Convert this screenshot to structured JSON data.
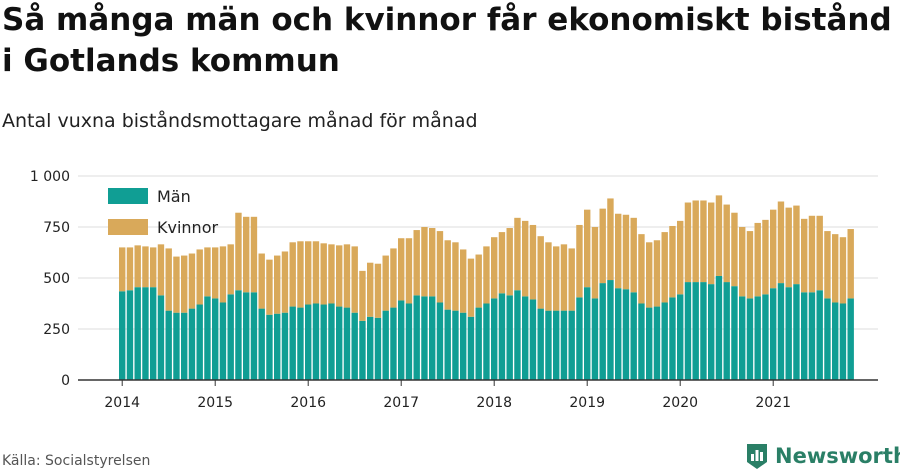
{
  "header": {
    "title": "Så många män och kvinnor får ekonomiskt bistånd i Gotlands kommun",
    "subtitle": "Antal vuxna biståndsmottagare månad för månad"
  },
  "footer": {
    "source": "Källa: Socialstyrelsen",
    "brand": "Newsworthy"
  },
  "colors": {
    "men": "#109e94",
    "women": "#d9a95a",
    "grid": "#dddddd",
    "axis": "#333333",
    "brand": "#2a7f66"
  },
  "chart_data": {
    "type": "bar",
    "stacked": true,
    "x_tick_labels": [
      "2014",
      "2015",
      "2016",
      "2017",
      "2018",
      "2019",
      "2020",
      "2021"
    ],
    "y_tick_labels": [
      "0",
      "250",
      "500",
      "750",
      "1 000"
    ],
    "y_ticks": [
      0,
      250,
      500,
      750,
      1000
    ],
    "ylim": [
      0,
      1000
    ],
    "start": "2014-01",
    "legend": {
      "position": "top-left"
    },
    "grid": true,
    "series": [
      {
        "name": "Män",
        "values": [
          435,
          440,
          455,
          455,
          455,
          415,
          340,
          330,
          330,
          350,
          370,
          410,
          400,
          380,
          420,
          440,
          430,
          430,
          350,
          320,
          325,
          330,
          360,
          355,
          370,
          375,
          370,
          375,
          360,
          355,
          330,
          290,
          310,
          305,
          340,
          355,
          390,
          375,
          415,
          410,
          410,
          380,
          345,
          340,
          330,
          310,
          355,
          375,
          400,
          425,
          415,
          440,
          410,
          395,
          350,
          340,
          340,
          340,
          340,
          405,
          455,
          400,
          475,
          490,
          450,
          445,
          430,
          375,
          355,
          360,
          380,
          405,
          420,
          480,
          480,
          480,
          470,
          510,
          480,
          460,
          410,
          400,
          410,
          420,
          450,
          475,
          455,
          470,
          430,
          430,
          440,
          400,
          380,
          375,
          400
        ]
      },
      {
        "name": "Kvinnor",
        "values": [
          215,
          210,
          205,
          200,
          195,
          250,
          305,
          275,
          280,
          270,
          270,
          240,
          250,
          275,
          245,
          380,
          370,
          370,
          270,
          270,
          285,
          300,
          315,
          325,
          310,
          305,
          300,
          290,
          300,
          310,
          325,
          245,
          265,
          265,
          270,
          290,
          305,
          320,
          320,
          340,
          335,
          350,
          340,
          335,
          310,
          285,
          260,
          280,
          300,
          300,
          330,
          355,
          370,
          365,
          355,
          335,
          315,
          325,
          305,
          355,
          380,
          350,
          365,
          400,
          365,
          365,
          365,
          340,
          320,
          325,
          345,
          350,
          360,
          390,
          400,
          400,
          400,
          395,
          380,
          360,
          340,
          330,
          360,
          365,
          385,
          400,
          390,
          385,
          360,
          375,
          365,
          330,
          335,
          325,
          340
        ]
      }
    ]
  }
}
